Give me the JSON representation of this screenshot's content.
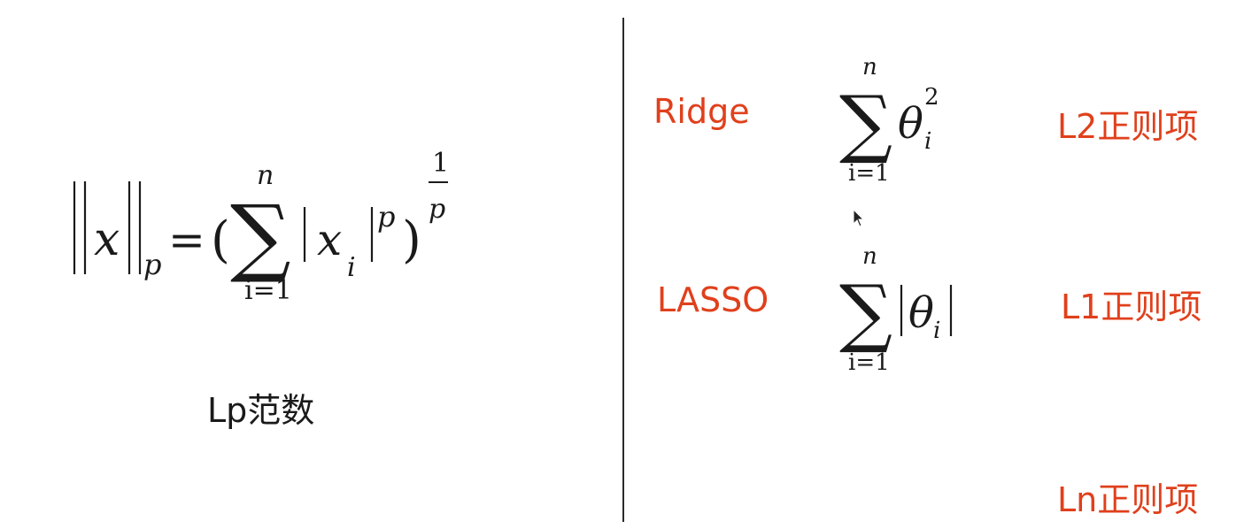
{
  "left_panel": {
    "caption": "Lp范数",
    "formula": {
      "norm_var": "x",
      "norm_sub": "p",
      "equals": "=",
      "open_paren": "(",
      "close_paren": ")",
      "sum_upper": "n",
      "sum_lower": "i=1",
      "inner_var": "x",
      "inner_sub": "i",
      "inner_power": "p",
      "outer_exp_num": "1",
      "outer_exp_den": "p"
    }
  },
  "right_panel": {
    "rows": [
      {
        "name": "Ridge",
        "regularizer": "L2正则项",
        "sum_upper": "n",
        "sum_lower": "i=1",
        "var": "θ",
        "sub": "i",
        "power": "2"
      },
      {
        "name": "LASSO",
        "regularizer": "L1正则项",
        "sum_upper": "n",
        "sum_lower": "i=1",
        "var": "θ",
        "sub": "i"
      },
      {
        "regularizer": "Ln正则项"
      }
    ]
  },
  "colors": {
    "accent_red": "#e0401c",
    "text_black": "#1a1a1a",
    "divider": "#2a2a2a"
  },
  "icons": {
    "cursor": "mouse-pointer-icon"
  }
}
